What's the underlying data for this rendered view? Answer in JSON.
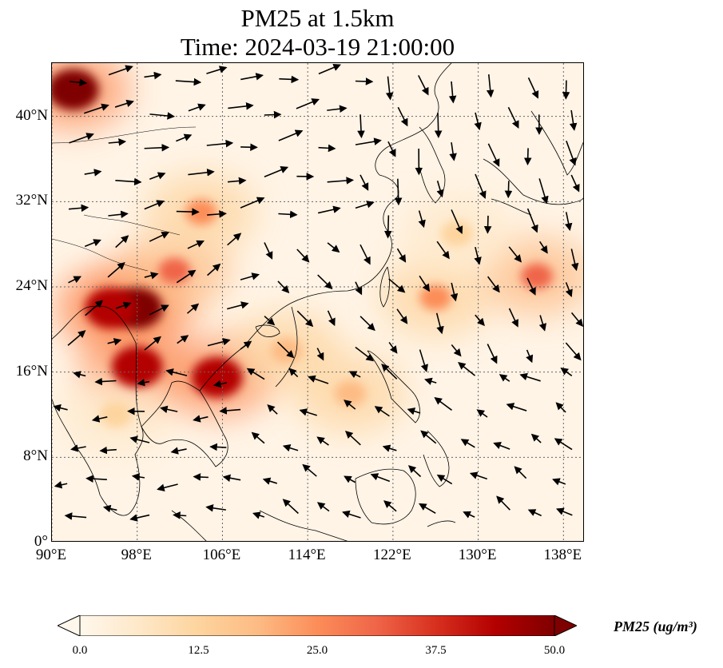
{
  "title": {
    "line1": "PM25 at 1.5km",
    "line2": "Time: 2024-03-19 21:00:00"
  },
  "map": {
    "extent": {
      "lon_min": 90,
      "lon_max": 140,
      "lat_min": 0,
      "lat_max": 45
    },
    "lat_ticks": [
      {
        "value": 0,
        "label": "0°"
      },
      {
        "value": 8,
        "label": "8°N"
      },
      {
        "value": 16,
        "label": "16°N"
      },
      {
        "value": 24,
        "label": "24°N"
      },
      {
        "value": 32,
        "label": "32°N"
      },
      {
        "value": 40,
        "label": "40°N"
      }
    ],
    "lon_ticks": [
      {
        "value": 90,
        "label": "90°E"
      },
      {
        "value": 98,
        "label": "98°E"
      },
      {
        "value": 106,
        "label": "106°E"
      },
      {
        "value": 114,
        "label": "114°E"
      },
      {
        "value": 122,
        "label": "122°E"
      },
      {
        "value": 130,
        "label": "130°E"
      },
      {
        "value": 138,
        "label": "138°E"
      }
    ],
    "gridlines": true,
    "gridline_style": "dotted",
    "wind_vectors": true
  },
  "colorbar": {
    "label": "PM25 (ug/m³)",
    "min": 0.0,
    "max": 50.0,
    "colormap": "OrRd",
    "extend": "both",
    "ticks": [
      "0.0",
      "12.5",
      "25.0",
      "37.5",
      "50.0"
    ],
    "colors": [
      "#fff7ec",
      "#fee8c8",
      "#fdd49e",
      "#fdbb84",
      "#fc8d59",
      "#ef6548",
      "#d7301f",
      "#b30000",
      "#7f0000"
    ]
  },
  "chart_data": {
    "type": "heatmap",
    "title": "PM25 at 1.5km\nTime: 2024-03-19 21:00:00",
    "xlabel": "",
    "ylabel": "",
    "xlim": [
      90,
      140
    ],
    "ylim": [
      0,
      45
    ],
    "colorbar_range": [
      0,
      50
    ],
    "hotspots": [
      {
        "lon": 92,
        "lat": 42.5,
        "value": 50
      },
      {
        "lon": 98,
        "lat": 22,
        "value": 50
      },
      {
        "lon": 95.5,
        "lat": 22,
        "value": 45
      },
      {
        "lon": 98,
        "lat": 16.5,
        "value": 42
      },
      {
        "lon": 105.5,
        "lat": 15.5,
        "value": 45
      },
      {
        "lon": 101.5,
        "lat": 25.5,
        "value": 32
      },
      {
        "lon": 104,
        "lat": 31,
        "value": 22
      },
      {
        "lon": 112,
        "lat": 18,
        "value": 20
      },
      {
        "lon": 118,
        "lat": 14,
        "value": 18
      },
      {
        "lon": 126,
        "lat": 23,
        "value": 22
      },
      {
        "lon": 135.5,
        "lat": 25,
        "value": 30
      },
      {
        "lon": 128,
        "lat": 29,
        "value": 15
      },
      {
        "lon": 96,
        "lat": 12,
        "value": 15
      }
    ]
  }
}
